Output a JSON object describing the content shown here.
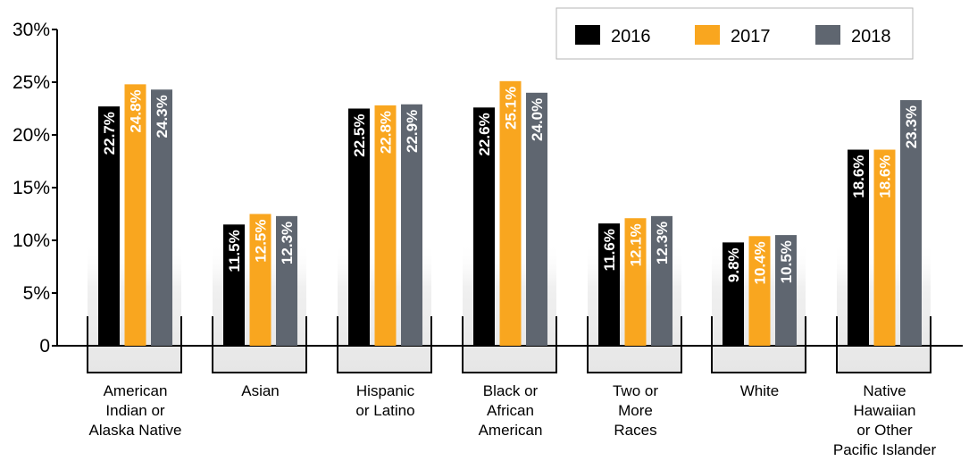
{
  "chart_data": {
    "type": "bar",
    "categories": [
      [
        "American",
        "Indian or",
        "Alaska Native"
      ],
      [
        "Asian"
      ],
      [
        "Hispanic",
        "or Latino"
      ],
      [
        "Black or",
        "African",
        "American"
      ],
      [
        "Two or",
        "More",
        "Races"
      ],
      [
        "White"
      ],
      [
        "Native",
        "Hawaiian",
        "or Other",
        "Pacific Islander"
      ]
    ],
    "series": [
      {
        "name": "2016",
        "color": "#000000",
        "values": [
          22.7,
          11.5,
          22.5,
          22.6,
          11.6,
          9.8,
          18.6
        ],
        "labels": [
          "22.7%",
          "11.5%",
          "22.5%",
          "22.6%",
          "11.6%",
          "9.8%",
          "18.6%"
        ]
      },
      {
        "name": "2017",
        "color": "#f9a61f",
        "values": [
          24.8,
          12.5,
          22.8,
          25.1,
          12.1,
          10.4,
          18.6
        ],
        "labels": [
          "24.8%",
          "12.5%",
          "22.8%",
          "25.1%",
          "12.1%",
          "10.4%",
          "18.6%"
        ]
      },
      {
        "name": "2018",
        "color": "#5f6670",
        "values": [
          24.3,
          12.3,
          22.9,
          24.0,
          12.3,
          10.5,
          23.3
        ],
        "labels": [
          "24.3%",
          "12.3%",
          "22.9%",
          "24.0%",
          "12.3%",
          "10.5%",
          "23.3%"
        ]
      }
    ],
    "yticks": [
      0,
      5,
      10,
      15,
      20,
      25,
      30
    ],
    "ytick_labels": [
      "0",
      "5%",
      "10%",
      "15%",
      "20%",
      "25%",
      "30%"
    ],
    "ylim": [
      0,
      30
    ],
    "legend_position": "top-right",
    "grid": false
  }
}
